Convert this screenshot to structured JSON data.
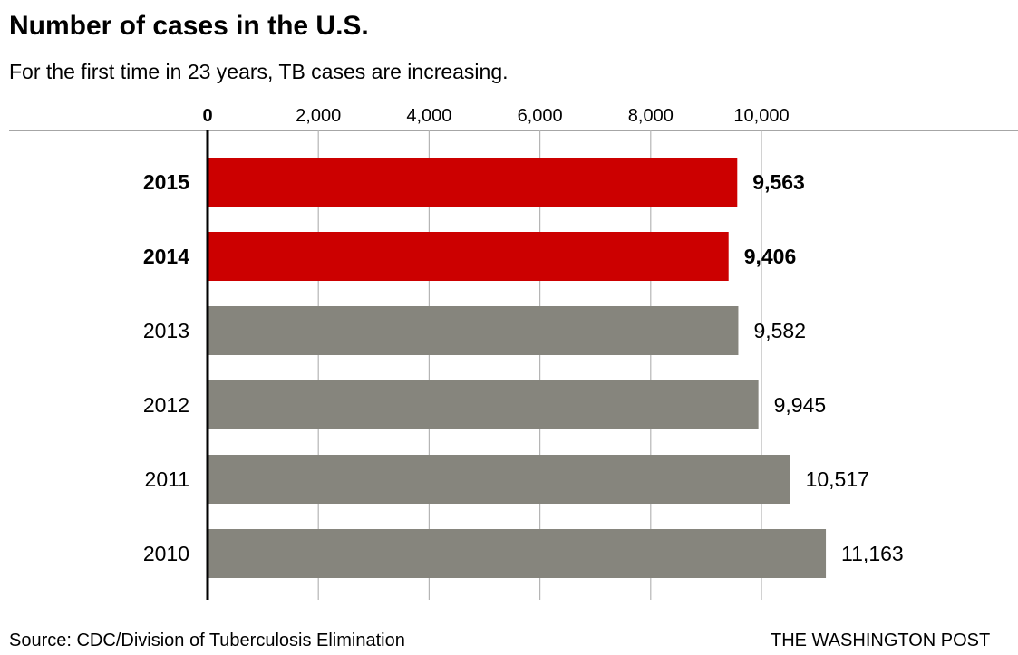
{
  "chart_data": {
    "type": "bar",
    "orientation": "horizontal",
    "title": "Number of cases in the U.S.",
    "subtitle": "For the first time in 23 years, TB cases are increasing.",
    "categories": [
      "2015",
      "2014",
      "2013",
      "2012",
      "2011",
      "2010"
    ],
    "values": [
      9563,
      9406,
      9582,
      9945,
      10517,
      11163
    ],
    "value_labels": [
      "9,563",
      "9,406",
      "9,582",
      "9,945",
      "10,517",
      "11,163"
    ],
    "highlighted": [
      true,
      true,
      false,
      false,
      false,
      false
    ],
    "xlim": [
      0,
      11200
    ],
    "xticks": [
      0,
      2000,
      4000,
      6000,
      8000,
      10000
    ],
    "xtick_labels": [
      "0",
      "2,000",
      "4,000",
      "6,000",
      "8,000",
      "10,000"
    ],
    "xlabel": "",
    "ylabel": "",
    "grid": true,
    "colors": {
      "highlight": "#cc0000",
      "default": "#86857d",
      "gridline": "#b5b5b5",
      "axis": "#000000"
    }
  },
  "footer": {
    "source": "Source: CDC/Division of Tuberculosis Elimination",
    "credit": "THE WASHINGTON POST"
  }
}
